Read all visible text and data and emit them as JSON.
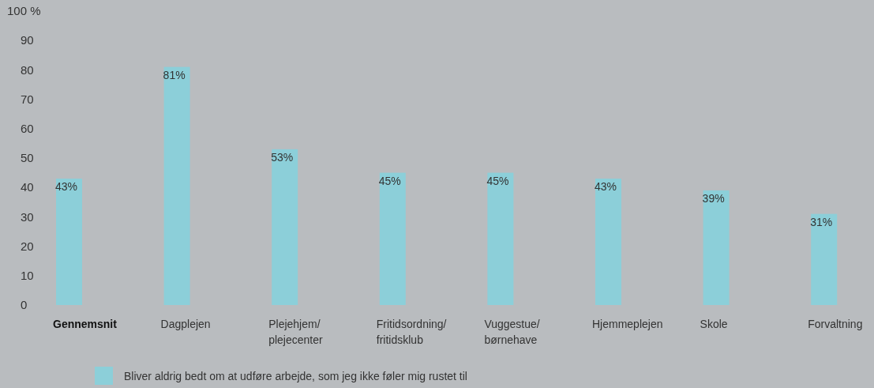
{
  "chart_data": {
    "type": "bar",
    "categories": [
      "Gennemsnit",
      "Dagplejen",
      "Plejehjem/\nplejecenter",
      "Fritidsordning/\nfritidsklub",
      "Vuggestue/\nbørnehave",
      "Hjemmeplejen",
      "Skole",
      "Forvaltning"
    ],
    "series": [
      {
        "name": "Bliver aldrig bedt om at udføre arbejde, som jeg ikke føler mig rustet til",
        "color": "#8ccfd9",
        "values": [
          43,
          81,
          53,
          45,
          45,
          43,
          39,
          31
        ],
        "value_labels": [
          "43%",
          "81%",
          "53%",
          "45%",
          "45%",
          "43%",
          "39%",
          "31%"
        ]
      }
    ],
    "ylim": [
      0,
      100
    ],
    "yticks": [
      0,
      10,
      20,
      30,
      40,
      50,
      60,
      70,
      80,
      90,
      {
        "value": 100,
        "label": "100 %"
      }
    ],
    "grid": false,
    "legend": "bottom left"
  }
}
